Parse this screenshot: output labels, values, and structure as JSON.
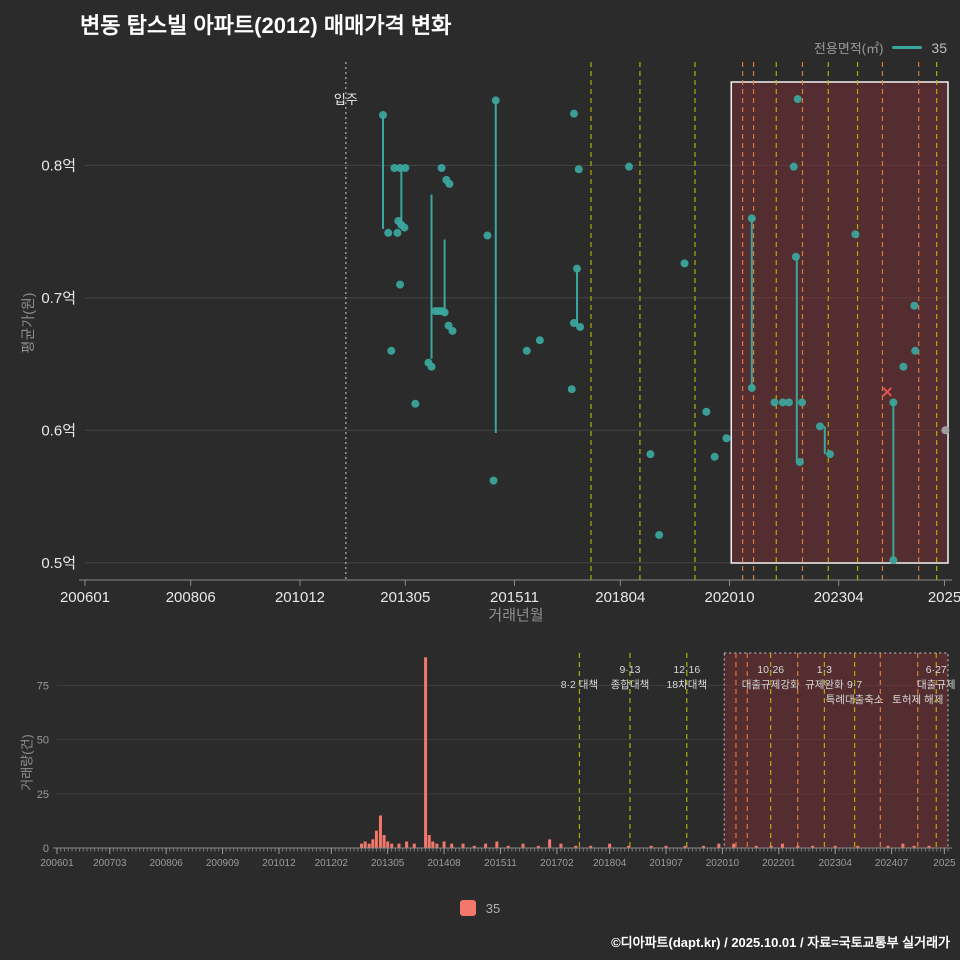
{
  "title": "변동 탑스빌 아파트(2012) 매매가격 변화",
  "footer": "©디아파트(dapt.kr) / 2025.10.01 / 자료=국토교통부 실거래가",
  "legend_top": {
    "label": "전용면적(㎡)",
    "series": "35"
  },
  "legend_bottom": {
    "series": "35"
  },
  "colors": {
    "background": "#2b2b2b",
    "series_teal": "#3aa79e",
    "series_salmon": "#f4776b",
    "highlight_fill": "#7c3034",
    "highlight_border": "#f2f2f2",
    "policy_yellow": "#b8b400",
    "policy_orange": "#e0803c",
    "grid": "#454545",
    "axis_text": "#e8e8e8",
    "muted_text": "#9a9a9a",
    "fail_red": "#e05252",
    "other_gray": "#9e9e9e"
  },
  "chart_data": [
    {
      "id": "price",
      "type": "scatter",
      "title": "변동 탑스빌 아파트(2012) 매매가격 변화",
      "xlabel": "거래년월",
      "ylabel": "평균가(원)",
      "series_name": "35",
      "legend_position": "top-right",
      "grid": true,
      "x_domain": [
        2006.0,
        2025.75
      ],
      "y_domain": [
        0.487,
        0.878
      ],
      "x_ticks": [
        [
          2006.0,
          "200601"
        ],
        [
          2008.42,
          "200806"
        ],
        [
          2010.92,
          "201012"
        ],
        [
          2013.33,
          "201305"
        ],
        [
          2015.83,
          "201511"
        ],
        [
          2018.25,
          "201804"
        ],
        [
          2020.75,
          "202010"
        ],
        [
          2023.25,
          "202304"
        ],
        [
          2025.67,
          "2025"
        ]
      ],
      "y_ticks": [
        [
          0.5,
          "0.5억"
        ],
        [
          0.6,
          "0.6억"
        ],
        [
          0.7,
          "0.7억"
        ],
        [
          0.8,
          "0.8억"
        ]
      ],
      "move_in": {
        "label": "입주",
        "x": 2011.97
      },
      "highlight_region": {
        "x0": 2020.79,
        "x1": 2025.75
      },
      "points": [
        [
          2012.82,
          0.838
        ],
        [
          2012.94,
          0.749
        ],
        [
          2013.15,
          0.749
        ],
        [
          2013.01,
          0.66
        ],
        [
          2013.08,
          0.798
        ],
        [
          2013.21,
          0.798
        ],
        [
          2013.33,
          0.798
        ],
        [
          2013.17,
          0.758
        ],
        [
          2013.24,
          0.755
        ],
        [
          2013.31,
          0.753
        ],
        [
          2013.21,
          0.71
        ],
        [
          2013.56,
          0.62
        ],
        [
          2013.86,
          0.651
        ],
        [
          2013.93,
          0.648
        ],
        [
          2014.02,
          0.69
        ],
        [
          2014.09,
          0.69
        ],
        [
          2014.16,
          0.69
        ],
        [
          2014.23,
          0.689
        ],
        [
          2014.16,
          0.798
        ],
        [
          2014.27,
          0.789
        ],
        [
          2014.34,
          0.786
        ],
        [
          2014.32,
          0.679
        ],
        [
          2014.41,
          0.675
        ],
        [
          2015.21,
          0.747
        ],
        [
          2015.4,
          0.849
        ],
        [
          2015.35,
          0.562
        ],
        [
          2016.11,
          0.66
        ],
        [
          2016.41,
          0.668
        ],
        [
          2017.14,
          0.631
        ],
        [
          2017.19,
          0.839
        ],
        [
          2017.3,
          0.797
        ],
        [
          2017.26,
          0.722
        ],
        [
          2017.19,
          0.681
        ],
        [
          2017.33,
          0.678
        ],
        [
          2018.45,
          0.799
        ],
        [
          2018.94,
          0.582
        ],
        [
          2019.14,
          0.521
        ],
        [
          2019.72,
          0.726
        ],
        [
          2020.22,
          0.614
        ],
        [
          2020.41,
          0.58
        ],
        [
          2020.68,
          0.594
        ],
        [
          2021.26,
          0.76
        ],
        [
          2021.26,
          0.632
        ],
        [
          2021.78,
          0.621
        ],
        [
          2021.97,
          0.621
        ],
        [
          2022.11,
          0.621
        ],
        [
          2022.31,
          0.85
        ],
        [
          2022.22,
          0.799
        ],
        [
          2022.27,
          0.731
        ],
        [
          2022.36,
          0.576
        ],
        [
          2022.41,
          0.621
        ],
        [
          2022.82,
          0.603
        ],
        [
          2023.05,
          0.582
        ],
        [
          2023.63,
          0.748
        ],
        [
          2024.5,
          0.621
        ],
        [
          2024.5,
          0.502
        ],
        [
          2024.73,
          0.648
        ],
        [
          2024.98,
          0.694
        ],
        [
          2025.0,
          0.66
        ]
      ],
      "segments": [
        [
          2012.82,
          0.838,
          0.752
        ],
        [
          2013.24,
          0.798,
          0.752
        ],
        [
          2013.93,
          0.778,
          0.654
        ],
        [
          2014.23,
          0.744,
          0.689
        ],
        [
          2015.4,
          0.849,
          0.598
        ],
        [
          2017.26,
          0.722,
          0.68
        ],
        [
          2021.26,
          0.76,
          0.632
        ],
        [
          2022.29,
          0.731,
          0.576
        ],
        [
          2022.93,
          0.603,
          0.582
        ],
        [
          2024.5,
          0.621,
          0.502
        ]
      ],
      "fail_marker": {
        "x": 2024.36,
        "y": 0.629
      },
      "other_point": {
        "x": 2025.69,
        "y": 0.6
      },
      "policies": [
        {
          "x": 2017.58,
          "color": "yellow",
          "labels": [
            "",
            "8·2 대책",
            ""
          ]
        },
        {
          "x": 2018.7,
          "color": "yellow",
          "labels": [
            "9·13",
            "종합대책",
            ""
          ]
        },
        {
          "x": 2019.96,
          "color": "yellow",
          "labels": [
            "12·16",
            "18차대책",
            ""
          ]
        },
        {
          "x": 2021.05,
          "color": "orange",
          "labels": [
            "",
            "",
            ""
          ]
        },
        {
          "x": 2021.3,
          "color": "orange",
          "labels": [
            "",
            "",
            ""
          ]
        },
        {
          "x": 2021.82,
          "color": "yellow",
          "labels": [
            "10·26",
            "대출규제강화",
            ""
          ]
        },
        {
          "x": 2022.42,
          "color": "orange",
          "labels": [
            "",
            "",
            ""
          ]
        },
        {
          "x": 2023.01,
          "color": "yellow",
          "labels": [
            "1·3",
            "규제완화",
            ""
          ]
        },
        {
          "x": 2023.68,
          "color": "yellow",
          "labels": [
            "",
            "9·7",
            "특례대출축소"
          ]
        },
        {
          "x": 2024.25,
          "color": "orange",
          "labels": [
            "",
            "",
            ""
          ]
        },
        {
          "x": 2025.08,
          "color": "orange",
          "labels": [
            "",
            "",
            "토허제 해제"
          ]
        },
        {
          "x": 2025.49,
          "color": "yellow",
          "labels": [
            "6·27",
            "대출규제",
            ""
          ]
        }
      ]
    },
    {
      "id": "volume",
      "type": "bar",
      "title": "",
      "xlabel": "",
      "ylabel": "거래량(건)",
      "series_name": "35",
      "x_domain": [
        2006.0,
        2025.75
      ],
      "y_domain": [
        0,
        90
      ],
      "y_ticks": [
        0,
        25,
        50,
        75
      ],
      "x_ticks": [
        [
          2006.0,
          "200601"
        ],
        [
          2007.17,
          "200703"
        ],
        [
          2008.42,
          "200806"
        ],
        [
          2009.67,
          "200909"
        ],
        [
          2010.92,
          "201012"
        ],
        [
          2012.08,
          "201202"
        ],
        [
          2013.33,
          "201305"
        ],
        [
          2014.58,
          "201408"
        ],
        [
          2015.83,
          "201511"
        ],
        [
          2017.08,
          "201702"
        ],
        [
          2018.25,
          "201804"
        ],
        [
          2019.5,
          "201907"
        ],
        [
          2020.75,
          "202010"
        ],
        [
          2022.0,
          "202201"
        ],
        [
          2023.25,
          "202304"
        ],
        [
          2024.5,
          "202407"
        ],
        [
          2025.67,
          "2025"
        ]
      ],
      "bars": [
        [
          2012.75,
          2
        ],
        [
          2012.83,
          3
        ],
        [
          2012.92,
          2
        ],
        [
          2013.0,
          4
        ],
        [
          2013.08,
          8
        ],
        [
          2013.17,
          15
        ],
        [
          2013.25,
          6
        ],
        [
          2013.33,
          3
        ],
        [
          2013.42,
          2
        ],
        [
          2013.58,
          2
        ],
        [
          2013.75,
          3
        ],
        [
          2013.92,
          2
        ],
        [
          2014.17,
          88
        ],
        [
          2014.25,
          6
        ],
        [
          2014.33,
          3
        ],
        [
          2014.42,
          2
        ],
        [
          2014.58,
          3
        ],
        [
          2014.75,
          2
        ],
        [
          2015.0,
          2
        ],
        [
          2015.25,
          1
        ],
        [
          2015.5,
          2
        ],
        [
          2015.75,
          3
        ],
        [
          2016.0,
          1
        ],
        [
          2016.33,
          2
        ],
        [
          2016.67,
          1
        ],
        [
          2016.92,
          4
        ],
        [
          2017.17,
          2
        ],
        [
          2017.5,
          1
        ],
        [
          2017.83,
          1
        ],
        [
          2018.25,
          2
        ],
        [
          2018.67,
          1
        ],
        [
          2019.17,
          1
        ],
        [
          2019.5,
          1
        ],
        [
          2019.92,
          1
        ],
        [
          2020.33,
          1
        ],
        [
          2020.67,
          2
        ],
        [
          2021.0,
          2
        ],
        [
          2021.5,
          1
        ],
        [
          2021.83,
          1
        ],
        [
          2022.08,
          2
        ],
        [
          2022.42,
          1
        ],
        [
          2022.75,
          1
        ],
        [
          2023.25,
          1
        ],
        [
          2023.75,
          1
        ],
        [
          2024.42,
          1
        ],
        [
          2024.75,
          2
        ],
        [
          2025.0,
          1
        ],
        [
          2025.33,
          1
        ]
      ]
    }
  ]
}
